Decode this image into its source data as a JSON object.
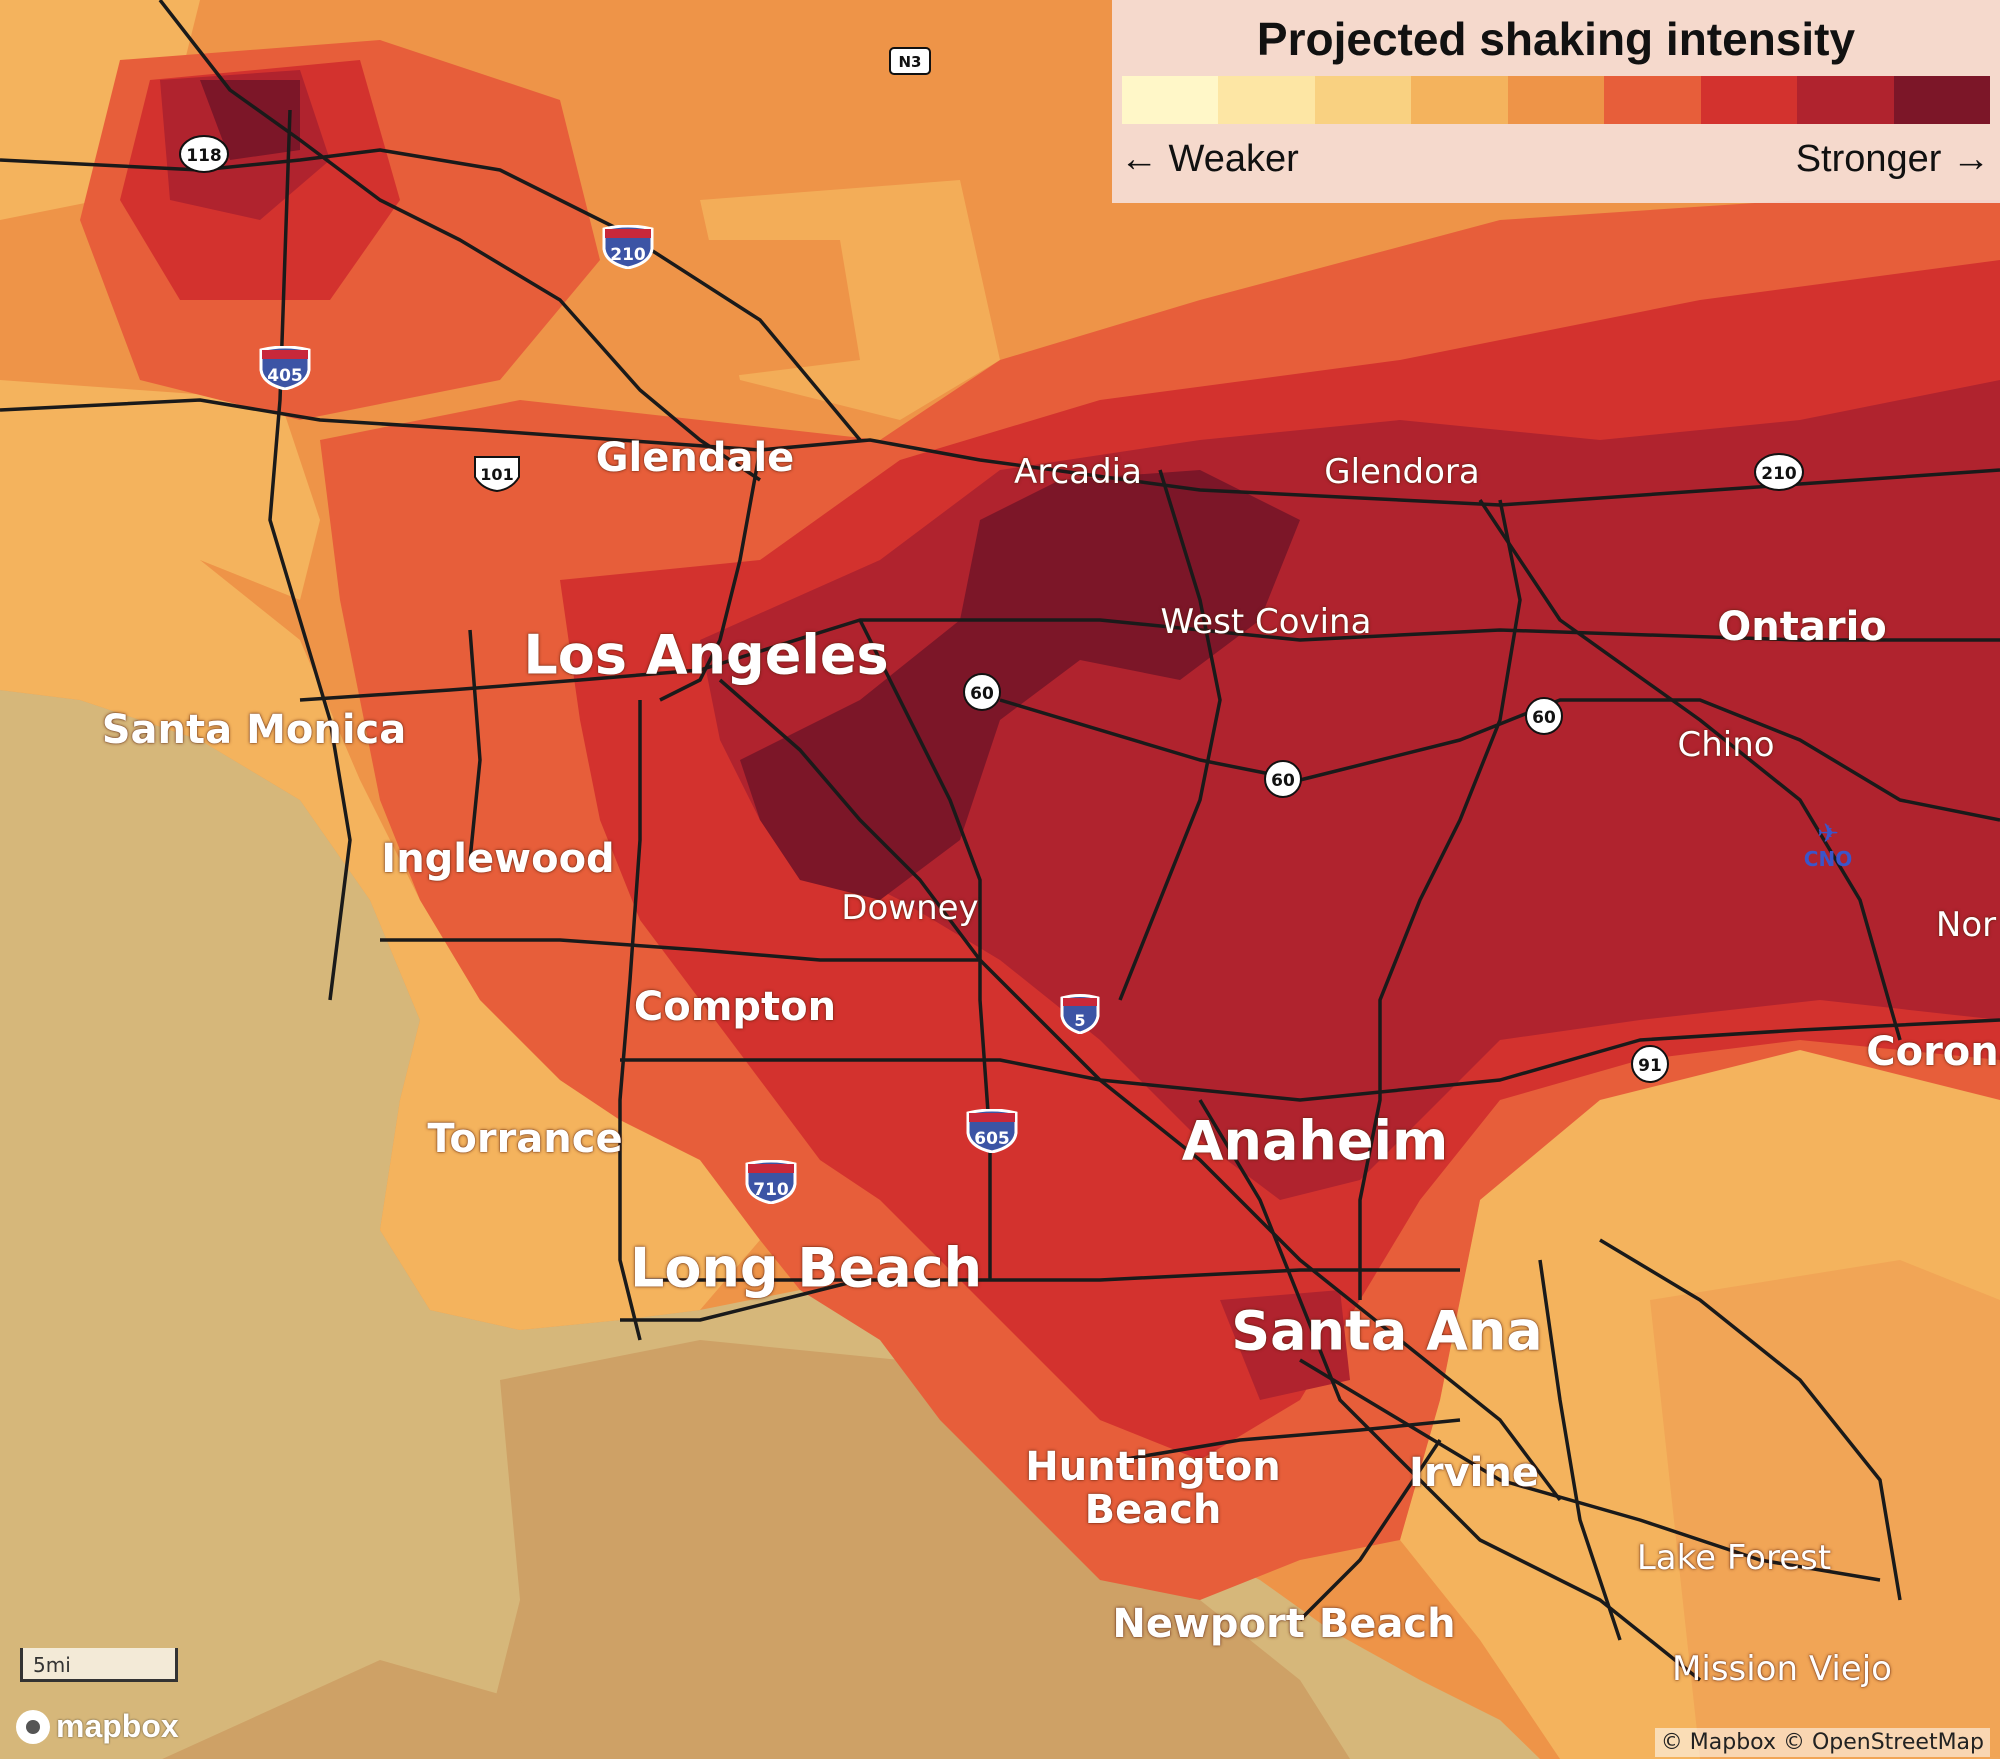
{
  "legend": {
    "title": "Projected shaking intensity",
    "weaker": "← Weaker",
    "stronger": "Stronger →",
    "colors": [
      "#fff7c8",
      "#fde6a4",
      "#f9d181",
      "#f4b35d",
      "#ee9448",
      "#e75e3a",
      "#d3322e",
      "#b0232e",
      "#7c1628"
    ]
  },
  "cities": [
    {
      "name": "Glendale",
      "size": "med"
    },
    {
      "name": "Arcadia",
      "size": "sm"
    },
    {
      "name": "Glendora",
      "size": "sm"
    },
    {
      "name": "Los Angeles",
      "size": "big"
    },
    {
      "name": "West Covina",
      "size": "sm"
    },
    {
      "name": "Ontario",
      "size": "med"
    },
    {
      "name": "Santa Monica",
      "size": "med"
    },
    {
      "name": "Chino",
      "size": "sm"
    },
    {
      "name": "Inglewood",
      "size": "med"
    },
    {
      "name": "Downey",
      "size": "sm"
    },
    {
      "name": "Nor",
      "size": "sm"
    },
    {
      "name": "Compton",
      "size": "med"
    },
    {
      "name": "Corona",
      "size": "med"
    },
    {
      "name": "Torrance",
      "size": "med"
    },
    {
      "name": "Anaheim",
      "size": "big"
    },
    {
      "name": "Long Beach",
      "size": "big"
    },
    {
      "name": "Santa Ana",
      "size": "big"
    },
    {
      "name": "Huntington",
      "size": "med"
    },
    {
      "name": "Beach",
      "size": "med"
    },
    {
      "name": "Irvine",
      "size": "med"
    },
    {
      "name": "Lake Forest",
      "size": "sm"
    },
    {
      "name": "Newport Beach",
      "size": "med"
    },
    {
      "name": "Mission Viejo",
      "size": "sm"
    }
  ],
  "shields": [
    {
      "num": "118",
      "type": "state"
    },
    {
      "num": "N3",
      "type": "county"
    },
    {
      "num": "210",
      "type": "interstate"
    },
    {
      "num": "405",
      "type": "interstate"
    },
    {
      "num": "101",
      "type": "us"
    },
    {
      "num": "210",
      "type": "state"
    },
    {
      "num": "60",
      "type": "state"
    },
    {
      "num": "60",
      "type": "state"
    },
    {
      "num": "60",
      "type": "state"
    },
    {
      "num": "5",
      "type": "interstate"
    },
    {
      "num": "91",
      "type": "state"
    },
    {
      "num": "605",
      "type": "interstate"
    },
    {
      "num": "710",
      "type": "interstate"
    }
  ],
  "airport": {
    "code": "CNO",
    "icon": "airplane-icon"
  },
  "scale_label": "5mi",
  "logo_text": "mapbox",
  "attribution": "© Mapbox © OpenStreetMap"
}
